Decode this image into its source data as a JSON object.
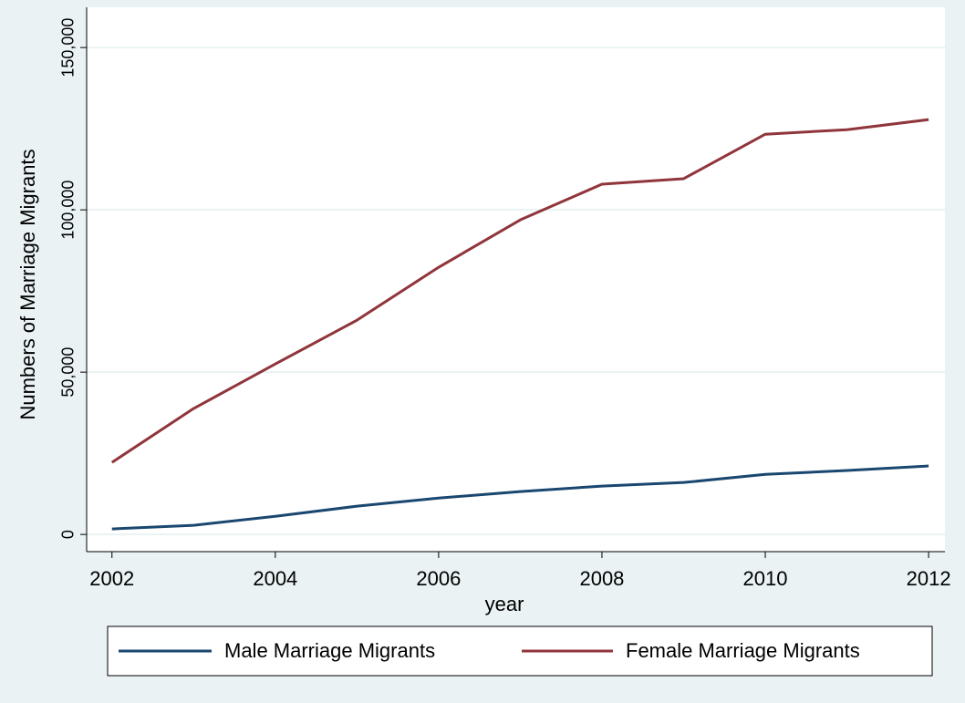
{
  "chart_data": {
    "type": "line",
    "x_label": "year",
    "y_label": "Numbers of Marriage Migrants",
    "x": [
      2002,
      2003,
      2004,
      2005,
      2006,
      2007,
      2008,
      2009,
      2010,
      2011,
      2012
    ],
    "series": [
      {
        "name": "Male Marriage Migrants",
        "color": "#1a476f",
        "values": [
          1700,
          2800,
          5600,
          8700,
          11200,
          13200,
          14900,
          16000,
          18500,
          19700,
          21100
        ]
      },
      {
        "name": "Female Marriage Migrants",
        "color": "#90353b",
        "values": [
          22200,
          38800,
          52500,
          66000,
          82300,
          96900,
          107900,
          109600,
          123300,
          124700,
          127800
        ]
      }
    ],
    "xlim": [
      2001.69,
      2012.2
    ],
    "xticks": [
      2002,
      2004,
      2006,
      2008,
      2010,
      2012
    ],
    "ylim": [
      -5300,
      162400
    ],
    "yticks": [
      0,
      {
        "value": 50000,
        "label": "50,000"
      },
      {
        "value": 100000,
        "label": "100,000"
      },
      {
        "value": 150000,
        "label": "150,000"
      }
    ],
    "grid": true,
    "legend": "bottom"
  }
}
